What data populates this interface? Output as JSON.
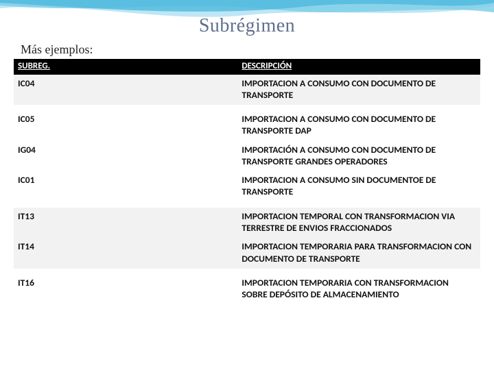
{
  "title": "Subrégimen",
  "subtitle": "Más ejemplos:",
  "columns": [
    "SUBREG.",
    "DESCRIPCIÓN"
  ],
  "rows": [
    {
      "code": "IC04",
      "desc": "IMPORTACION A CONSUMO CON DOCUMENTO DE TRANSPORTE",
      "band": "light"
    },
    {
      "code": "IC05",
      "desc": "IMPORTACION A CONSUMO CON DOCUMENTO DE TRANSPORTE DAP",
      "band": "white",
      "gapBefore": true
    },
    {
      "code": "IG04",
      "desc": "IMPORTACIÓN A CONSUMO CON DOCUMENTO DE TRANSPORTE GRANDES OPERADORES",
      "band": "white"
    },
    {
      "code": "IC01",
      "desc": "IMPORTACION A CONSUMO SIN DOCUMENTOE DE TRANSPORTE",
      "band": "white"
    },
    {
      "code": "IT13",
      "desc": "IMPORTACION TEMPORAL CON TRANSFORMACION VIA TERRESTRE DE ENVIOS FRACCIONADOS",
      "band": "light",
      "gapBefore": true
    },
    {
      "code": "IT14",
      "desc": "IMPORTACION TEMPORARIA PARA TRANSFORMACION CON DOCUMENTO DE TRANSPORTE",
      "band": "light"
    },
    {
      "code": "IT16",
      "desc": "IMPORTACION TEMPORARIA CON TRANSFORMACION SOBRE DEPÓSITO DE ALMACENAMIENTO",
      "band": "white",
      "gapBefore": true
    }
  ],
  "style": {
    "title_color": "#5f6f8f",
    "header_bg": "#000000",
    "header_fg": "#ffffff",
    "band_light": "#f2f2f2",
    "band_white": "#ffffff",
    "wave_colors": [
      "#bfe6f5",
      "#7fcfe8",
      "#4fb9dd"
    ]
  }
}
